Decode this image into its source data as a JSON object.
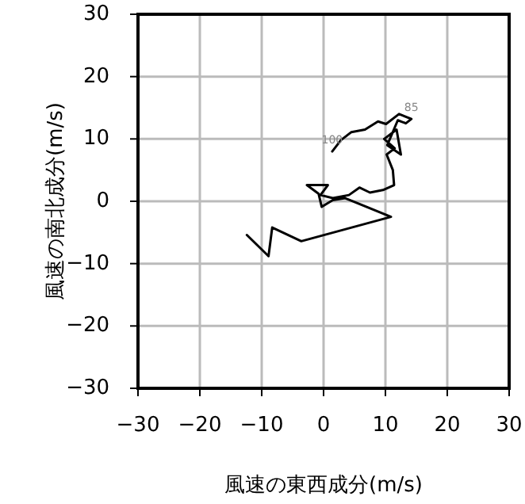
{
  "chart_data": {
    "type": "line",
    "xlabel": "風速の東西成分(m/s)",
    "ylabel": "風速の南北成分(m/s)",
    "xlim": [
      -30,
      30
    ],
    "ylim": [
      -30,
      30
    ],
    "xticks": [
      {
        "value": -30,
        "label": "−30"
      },
      {
        "value": -20,
        "label": "−20"
      },
      {
        "value": -10,
        "label": "−10"
      },
      0,
      10,
      20,
      30
    ],
    "yticks": [
      {
        "value": -30,
        "label": "−30"
      },
      {
        "value": -20,
        "label": "−20"
      },
      {
        "value": -10,
        "label": "−10"
      },
      0,
      10,
      20,
      30
    ],
    "grid": true,
    "marker": "none",
    "line_style": "solid",
    "series": [
      {
        "color": "#000000",
        "x": [
          -12.4,
          -8.9,
          -8.3,
          -3.6,
          10.9,
          3.5,
          1.5,
          -0.3,
          -0.8,
          -2.7,
          0.7,
          -0.5,
          1.5,
          4.1,
          5.8,
          7.5,
          9.6,
          11.4,
          11.2,
          10.2,
          11.5,
          9.8,
          11.8,
          12.5,
          10.3,
          12.0,
          13.3,
          14.2,
          12.2,
          10.1,
          8.8,
          6.7,
          4.5,
          2.8,
          1.4
        ],
        "values": [
          -5.4,
          -8.8,
          -4.2,
          -6.4,
          -2.5,
          0.5,
          0.2,
          -0.9,
          1.2,
          2.6,
          2.6,
          1.0,
          0.5,
          1.0,
          2.2,
          1.4,
          1.8,
          2.6,
          5.0,
          7.5,
          8.5,
          10.0,
          11.5,
          7.5,
          9.0,
          13.0,
          12.5,
          13.2,
          14.0,
          12.4,
          12.8,
          11.5,
          11.1,
          9.8,
          8.0
        ]
      }
    ],
    "annotations": [
      {
        "text": "85",
        "x": 14.2,
        "y": 13.2
      },
      {
        "text": "100",
        "x": 1.4,
        "y": 8.0
      }
    ]
  }
}
